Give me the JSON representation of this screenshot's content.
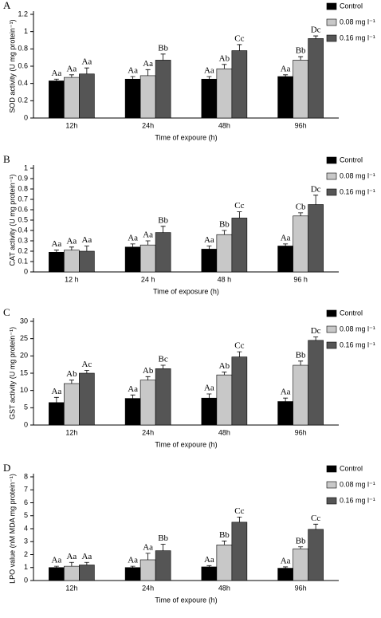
{
  "chart_data": [
    {
      "type": "bar",
      "panel": "A",
      "y_label": "SOD activity (U mg protein⁻¹)",
      "x_label": "Time of expoure (h)",
      "categories": [
        "12h",
        "24h",
        "48h",
        "96h"
      ],
      "ylim": [
        0,
        1.2
      ],
      "yticks": [
        0,
        0.2,
        0.4,
        0.6,
        0.8,
        1,
        1.2
      ],
      "series": [
        {
          "name": "Control",
          "color": "#000000",
          "values": [
            0.43,
            0.45,
            0.45,
            0.48
          ],
          "errors": [
            0.02,
            0.03,
            0.03,
            0.02
          ],
          "letters": [
            "Aa",
            "Aa",
            "Aa",
            "Aa"
          ]
        },
        {
          "name": "0.08 mg l⁻¹",
          "color": "#c8c8c8",
          "values": [
            0.47,
            0.49,
            0.57,
            0.67
          ],
          "errors": [
            0.03,
            0.07,
            0.05,
            0.04
          ],
          "letters": [
            "Aa",
            "Aa",
            "Ab",
            "Bb"
          ]
        },
        {
          "name": "0.16 mg l⁻¹",
          "color": "#555555",
          "values": [
            0.51,
            0.67,
            0.78,
            0.92
          ],
          "errors": [
            0.07,
            0.07,
            0.07,
            0.03
          ],
          "letters": [
            "Aa",
            "Bb",
            "Cc",
            "Dc"
          ]
        }
      ]
    },
    {
      "type": "bar",
      "panel": "B",
      "y_label": "CAT activity (U mg protein⁻¹)",
      "x_label": "Time of exposure (h)",
      "categories": [
        "12 h",
        "24 h",
        "48 h",
        "96 h"
      ],
      "ylim": [
        0,
        1
      ],
      "yticks": [
        0,
        0.1,
        0.2,
        0.3,
        0.4,
        0.5,
        0.6,
        0.7,
        0.8,
        0.9,
        1
      ],
      "series": [
        {
          "name": "Control",
          "color": "#000000",
          "values": [
            0.19,
            0.24,
            0.22,
            0.25
          ],
          "errors": [
            0.02,
            0.03,
            0.03,
            0.02
          ],
          "letters": [
            "Aa",
            "Aa",
            "Aa",
            "Aa"
          ]
        },
        {
          "name": "0.08 mg l⁻¹",
          "color": "#c8c8c8",
          "values": [
            0.21,
            0.26,
            0.36,
            0.54
          ],
          "errors": [
            0.03,
            0.04,
            0.04,
            0.03
          ],
          "letters": [
            "Aa",
            "Aa",
            "Bb",
            "Cb"
          ]
        },
        {
          "name": "0.16 mg l⁻¹",
          "color": "#555555",
          "values": [
            0.2,
            0.38,
            0.52,
            0.65
          ],
          "errors": [
            0.05,
            0.06,
            0.06,
            0.09
          ],
          "letters": [
            "Aa",
            "Bb",
            "Cc",
            "Dc"
          ]
        }
      ]
    },
    {
      "type": "bar",
      "panel": "C",
      "y_label": "GST activity (U mg protein⁻¹)",
      "x_label": "Time of expoure (h)",
      "categories": [
        "12h",
        "24h",
        "48h",
        "96h"
      ],
      "ylim": [
        0,
        30
      ],
      "yticks": [
        0,
        5,
        10,
        15,
        20,
        25,
        30
      ],
      "series": [
        {
          "name": "Control",
          "color": "#000000",
          "values": [
            6.5,
            7.7,
            7.8,
            6.8
          ],
          "errors": [
            1.5,
            1,
            1.2,
            1
          ],
          "letters": [
            "Aa",
            "Aa",
            "Aa",
            "Aa"
          ]
        },
        {
          "name": "0.08 mg l⁻¹",
          "color": "#c8c8c8",
          "values": [
            12,
            13,
            14.5,
            17.3
          ],
          "errors": [
            1,
            1,
            0.8,
            1.2
          ],
          "letters": [
            "Ab",
            "Ab",
            "Ab",
            "Bb"
          ]
        },
        {
          "name": "0.16 mg l⁻¹",
          "color": "#555555",
          "values": [
            15,
            16.3,
            19.7,
            24.5
          ],
          "errors": [
            0.8,
            1,
            1.5,
            1
          ],
          "letters": [
            "Ac",
            "Bc",
            "Cc",
            "Dc"
          ]
        }
      ]
    },
    {
      "type": "bar",
      "panel": "D",
      "y_label": "LPO value (nM MDA mg protein⁻¹)",
      "x_label": "Time of expoure (h)",
      "categories": [
        "12h",
        "24h",
        "48h",
        "96h"
      ],
      "ylim": [
        0,
        8
      ],
      "yticks": [
        0,
        1,
        2,
        3,
        4,
        5,
        6,
        7,
        8
      ],
      "series": [
        {
          "name": "Control",
          "color": "#000000",
          "values": [
            1,
            1,
            1.05,
            0.95
          ],
          "errors": [
            0.1,
            0.1,
            0.1,
            0.1
          ],
          "letters": [
            "Aa",
            "Aa",
            "Aa",
            "Aa"
          ]
        },
        {
          "name": "0.08 mg l⁻¹",
          "color": "#c8c8c8",
          "values": [
            1.1,
            1.6,
            2.75,
            2.45
          ],
          "errors": [
            0.3,
            0.5,
            0.3,
            0.15
          ],
          "letters": [
            "Aa",
            "Aa",
            "Bb",
            "Bb"
          ]
        },
        {
          "name": "0.16 mg l⁻¹",
          "color": "#555555",
          "values": [
            1.2,
            2.3,
            4.5,
            3.95
          ],
          "errors": [
            0.2,
            0.5,
            0.4,
            0.4
          ],
          "letters": [
            "Aa",
            "Bb",
            "Cc",
            "Cc"
          ]
        }
      ]
    }
  ]
}
